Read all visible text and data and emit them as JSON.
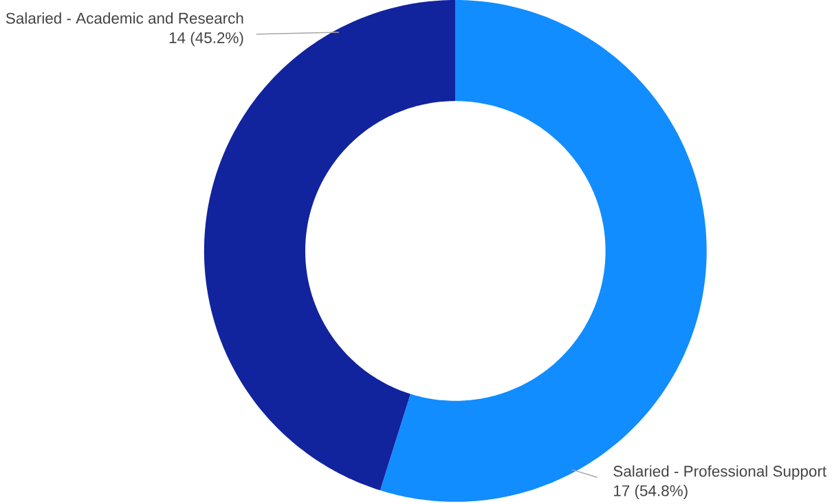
{
  "chart_data": {
    "type": "donut",
    "categories": [
      "Salaried - Professional Support",
      "Salaried - Academic and Research"
    ],
    "values": [
      17,
      14
    ],
    "colors": [
      "#118dff",
      "#12239e"
    ],
    "value_labels": [
      "17 (54.8%)",
      "14 (45.2%)"
    ]
  }
}
